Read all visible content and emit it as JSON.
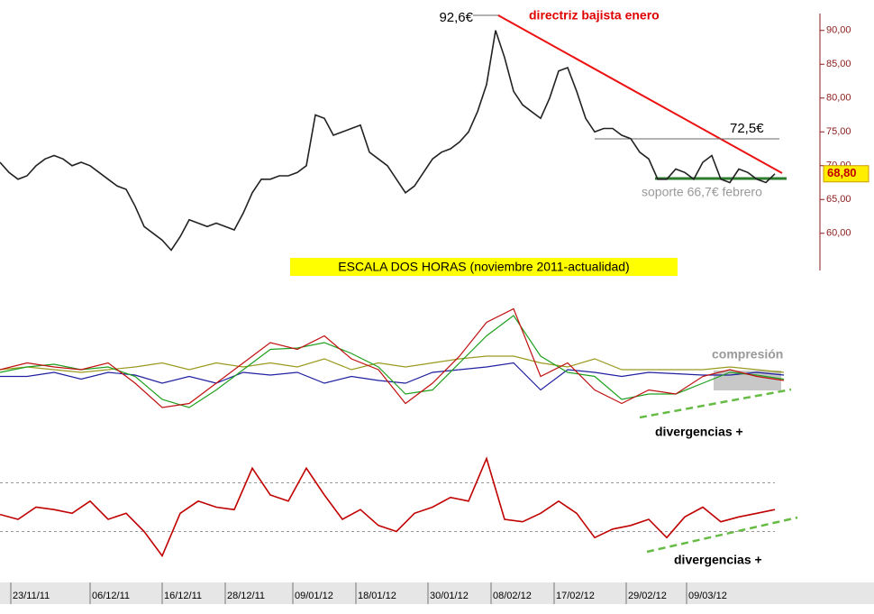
{
  "chart_data": [
    {
      "type": "line",
      "title": "ESCALA DOS HORAS (noviembre 2011-actualidad)",
      "x": [
        0,
        1,
        2,
        3,
        4,
        5,
        6,
        7,
        8,
        9,
        10,
        11,
        12,
        13,
        14,
        15,
        16,
        17,
        18,
        19,
        20,
        21,
        22,
        23,
        24,
        25,
        26,
        27,
        28,
        29,
        30,
        31,
        32,
        33,
        34,
        35,
        36,
        37,
        38,
        39,
        40,
        41,
        42,
        43,
        44,
        45,
        46,
        47,
        48,
        49,
        50,
        51,
        52,
        53,
        54,
        55,
        56,
        57,
        58,
        59,
        60,
        61,
        62,
        63,
        64,
        65,
        66,
        67,
        68,
        69,
        70,
        71,
        72,
        73,
        74,
        75,
        76,
        77,
        78,
        79,
        80,
        81,
        82,
        83,
        84,
        85,
        86
      ],
      "series": [
        {
          "color": "#222222",
          "values": [
            70.5,
            69,
            68,
            68.5,
            70,
            71,
            71.5,
            71,
            70,
            70.5,
            70,
            69,
            68,
            67,
            66.5,
            64,
            61,
            60,
            59,
            57.5,
            59.5,
            62,
            61.5,
            61,
            61.5,
            61,
            60.5,
            63,
            66,
            68,
            68,
            68.5,
            68.5,
            69,
            70,
            77.5,
            77,
            74.5,
            75,
            75.5,
            76,
            72,
            71,
            70,
            68,
            66,
            67,
            69,
            71,
            72,
            72.5,
            73.5,
            75,
            78,
            82,
            90,
            86,
            81,
            79,
            78,
            77,
            80,
            84,
            84.5,
            81,
            77,
            75,
            75.5,
            75.5,
            74.5,
            74,
            72,
            71,
            68,
            68,
            69.5,
            69,
            68,
            70.5,
            71.5,
            68,
            67.5,
            69.5,
            69,
            68,
            67.5,
            68.8
          ]
        }
      ],
      "xlim": [
        0,
        91
      ],
      "ylim": [
        54.5,
        92.5
      ],
      "yticks": [
        {
          "value": 60,
          "label": "60,00"
        },
        {
          "value": 65,
          "label": "65,00"
        },
        {
          "value": 70,
          "label": "70,00"
        },
        {
          "value": 75,
          "label": "75,00"
        },
        {
          "value": 80,
          "label": "80,00"
        },
        {
          "value": 85,
          "label": "85,00"
        },
        {
          "value": 90,
          "label": "90,00"
        }
      ],
      "last_price": {
        "value": 68.8,
        "label": "68,80"
      },
      "annotations": [
        "92,6€",
        "directriz bajista enero",
        "72,5€",
        "soporte 66,7€ febrero"
      ]
    },
    {
      "type": "line",
      "xlim": [
        0,
        91
      ],
      "ylim": [
        0,
        100
      ],
      "x": [
        0,
        3,
        6,
        9,
        12,
        15,
        18,
        21,
        24,
        27,
        30,
        33,
        36,
        39,
        42,
        45,
        48,
        51,
        54,
        57,
        60,
        63,
        66,
        69,
        72,
        75,
        78,
        81,
        84,
        87
      ],
      "series": [
        {
          "color": "#2020a0",
          "values": [
            35,
            35,
            38,
            33,
            38,
            36,
            30,
            35,
            30,
            38,
            36,
            38,
            30,
            35,
            32,
            30,
            38,
            40,
            42,
            45,
            25,
            40,
            38,
            35,
            38,
            37,
            36,
            36,
            38,
            36
          ]
        },
        {
          "color": "#9a9a20",
          "values": [
            40,
            42,
            40,
            38,
            40,
            42,
            45,
            40,
            45,
            42,
            45,
            42,
            48,
            40,
            45,
            42,
            45,
            48,
            50,
            50,
            45,
            42,
            48,
            40,
            40,
            40,
            40,
            42,
            40,
            38
          ]
        },
        {
          "color": "#20a020",
          "values": [
            38,
            42,
            44,
            40,
            42,
            35,
            18,
            12,
            25,
            40,
            55,
            56,
            60,
            52,
            42,
            22,
            25,
            45,
            65,
            80,
            50,
            38,
            35,
            18,
            22,
            22,
            30,
            38,
            36,
            33
          ]
        },
        {
          "color": "#c01010",
          "values": [
            40,
            45,
            42,
            40,
            45,
            30,
            12,
            15,
            30,
            45,
            60,
            55,
            65,
            48,
            40,
            15,
            30,
            50,
            75,
            85,
            35,
            45,
            25,
            15,
            25,
            22,
            35,
            40,
            35,
            32
          ]
        }
      ],
      "annotations": [
        "compresión",
        "divergencias +"
      ]
    },
    {
      "type": "line",
      "xlim": [
        0,
        91
      ],
      "ylim": [
        0,
        100
      ],
      "yticks": [
        30,
        70
      ],
      "x": [
        0,
        2,
        4,
        6,
        8,
        10,
        12,
        14,
        16,
        18,
        20,
        22,
        24,
        26,
        28,
        30,
        32,
        34,
        36,
        38,
        40,
        42,
        44,
        46,
        48,
        50,
        52,
        54,
        56,
        58,
        60,
        62,
        64,
        66,
        68,
        70,
        72,
        74,
        76,
        78,
        80,
        82,
        84,
        86
      ],
      "series": [
        {
          "color": "#c00000",
          "values": [
            44,
            40,
            50,
            48,
            45,
            55,
            40,
            45,
            30,
            10,
            45,
            55,
            50,
            48,
            82,
            60,
            55,
            82,
            60,
            40,
            48,
            35,
            30,
            45,
            50,
            58,
            55,
            90,
            40,
            38,
            45,
            55,
            45,
            25,
            32,
            35,
            40,
            25,
            42,
            50,
            38,
            42,
            45,
            48
          ]
        }
      ],
      "xticks": [
        {
          "value": 1.2,
          "label": "23/11/11"
        },
        {
          "value": 10,
          "label": "06/12/11"
        },
        {
          "value": 18,
          "label": "16/12/11"
        },
        {
          "value": 25,
          "label": "28/12/11"
        },
        {
          "value": 32.5,
          "label": "09/01/12"
        },
        {
          "value": 39.5,
          "label": "18/01/12"
        },
        {
          "value": 47.5,
          "label": "30/01/12"
        },
        {
          "value": 54.5,
          "label": "08/02/12"
        },
        {
          "value": 61.5,
          "label": "17/02/12"
        },
        {
          "value": 69.5,
          "label": "29/02/12"
        },
        {
          "value": 76.2,
          "label": "09/03/12"
        }
      ],
      "annotations": [
        "divergencias +"
      ]
    }
  ]
}
